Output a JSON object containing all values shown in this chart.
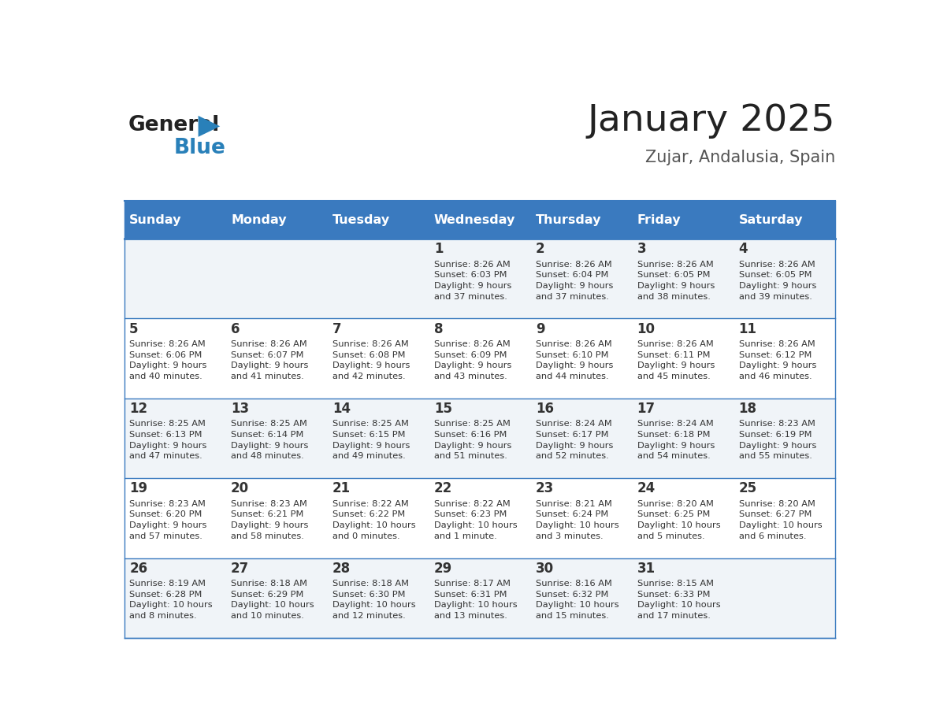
{
  "title": "January 2025",
  "subtitle": "Zujar, Andalusia, Spain",
  "header_color": "#3a7abf",
  "header_text_color": "#ffffff",
  "cell_bg_color": "#f0f4f8",
  "cell_bg_alt": "#ffffff",
  "border_color": "#3a7abf",
  "day_names": [
    "Sunday",
    "Monday",
    "Tuesday",
    "Wednesday",
    "Thursday",
    "Friday",
    "Saturday"
  ],
  "title_color": "#222222",
  "subtitle_color": "#555555",
  "day_num_color": "#333333",
  "cell_text_color": "#333333",
  "logo_general_color": "#222222",
  "logo_blue_color": "#2980b9",
  "days": [
    {
      "date": 1,
      "col": 3,
      "row": 0,
      "sunrise": "8:26 AM",
      "sunset": "6:03 PM",
      "daylight_h": "9 hours",
      "daylight_m": "37 minutes."
    },
    {
      "date": 2,
      "col": 4,
      "row": 0,
      "sunrise": "8:26 AM",
      "sunset": "6:04 PM",
      "daylight_h": "9 hours",
      "daylight_m": "37 minutes."
    },
    {
      "date": 3,
      "col": 5,
      "row": 0,
      "sunrise": "8:26 AM",
      "sunset": "6:05 PM",
      "daylight_h": "9 hours",
      "daylight_m": "38 minutes."
    },
    {
      "date": 4,
      "col": 6,
      "row": 0,
      "sunrise": "8:26 AM",
      "sunset": "6:05 PM",
      "daylight_h": "9 hours",
      "daylight_m": "39 minutes."
    },
    {
      "date": 5,
      "col": 0,
      "row": 1,
      "sunrise": "8:26 AM",
      "sunset": "6:06 PM",
      "daylight_h": "9 hours",
      "daylight_m": "40 minutes."
    },
    {
      "date": 6,
      "col": 1,
      "row": 1,
      "sunrise": "8:26 AM",
      "sunset": "6:07 PM",
      "daylight_h": "9 hours",
      "daylight_m": "41 minutes."
    },
    {
      "date": 7,
      "col": 2,
      "row": 1,
      "sunrise": "8:26 AM",
      "sunset": "6:08 PM",
      "daylight_h": "9 hours",
      "daylight_m": "42 minutes."
    },
    {
      "date": 8,
      "col": 3,
      "row": 1,
      "sunrise": "8:26 AM",
      "sunset": "6:09 PM",
      "daylight_h": "9 hours",
      "daylight_m": "43 minutes."
    },
    {
      "date": 9,
      "col": 4,
      "row": 1,
      "sunrise": "8:26 AM",
      "sunset": "6:10 PM",
      "daylight_h": "9 hours",
      "daylight_m": "44 minutes."
    },
    {
      "date": 10,
      "col": 5,
      "row": 1,
      "sunrise": "8:26 AM",
      "sunset": "6:11 PM",
      "daylight_h": "9 hours",
      "daylight_m": "45 minutes."
    },
    {
      "date": 11,
      "col": 6,
      "row": 1,
      "sunrise": "8:26 AM",
      "sunset": "6:12 PM",
      "daylight_h": "9 hours",
      "daylight_m": "46 minutes."
    },
    {
      "date": 12,
      "col": 0,
      "row": 2,
      "sunrise": "8:25 AM",
      "sunset": "6:13 PM",
      "daylight_h": "9 hours",
      "daylight_m": "47 minutes."
    },
    {
      "date": 13,
      "col": 1,
      "row": 2,
      "sunrise": "8:25 AM",
      "sunset": "6:14 PM",
      "daylight_h": "9 hours",
      "daylight_m": "48 minutes."
    },
    {
      "date": 14,
      "col": 2,
      "row": 2,
      "sunrise": "8:25 AM",
      "sunset": "6:15 PM",
      "daylight_h": "9 hours",
      "daylight_m": "49 minutes."
    },
    {
      "date": 15,
      "col": 3,
      "row": 2,
      "sunrise": "8:25 AM",
      "sunset": "6:16 PM",
      "daylight_h": "9 hours",
      "daylight_m": "51 minutes."
    },
    {
      "date": 16,
      "col": 4,
      "row": 2,
      "sunrise": "8:24 AM",
      "sunset": "6:17 PM",
      "daylight_h": "9 hours",
      "daylight_m": "52 minutes."
    },
    {
      "date": 17,
      "col": 5,
      "row": 2,
      "sunrise": "8:24 AM",
      "sunset": "6:18 PM",
      "daylight_h": "9 hours",
      "daylight_m": "54 minutes."
    },
    {
      "date": 18,
      "col": 6,
      "row": 2,
      "sunrise": "8:23 AM",
      "sunset": "6:19 PM",
      "daylight_h": "9 hours",
      "daylight_m": "55 minutes."
    },
    {
      "date": 19,
      "col": 0,
      "row": 3,
      "sunrise": "8:23 AM",
      "sunset": "6:20 PM",
      "daylight_h": "9 hours",
      "daylight_m": "57 minutes."
    },
    {
      "date": 20,
      "col": 1,
      "row": 3,
      "sunrise": "8:23 AM",
      "sunset": "6:21 PM",
      "daylight_h": "9 hours",
      "daylight_m": "58 minutes."
    },
    {
      "date": 21,
      "col": 2,
      "row": 3,
      "sunrise": "8:22 AM",
      "sunset": "6:22 PM",
      "daylight_h": "10 hours",
      "daylight_m": "0 minutes."
    },
    {
      "date": 22,
      "col": 3,
      "row": 3,
      "sunrise": "8:22 AM",
      "sunset": "6:23 PM",
      "daylight_h": "10 hours",
      "daylight_m": "1 minute."
    },
    {
      "date": 23,
      "col": 4,
      "row": 3,
      "sunrise": "8:21 AM",
      "sunset": "6:24 PM",
      "daylight_h": "10 hours",
      "daylight_m": "3 minutes."
    },
    {
      "date": 24,
      "col": 5,
      "row": 3,
      "sunrise": "8:20 AM",
      "sunset": "6:25 PM",
      "daylight_h": "10 hours",
      "daylight_m": "5 minutes."
    },
    {
      "date": 25,
      "col": 6,
      "row": 3,
      "sunrise": "8:20 AM",
      "sunset": "6:27 PM",
      "daylight_h": "10 hours",
      "daylight_m": "6 minutes."
    },
    {
      "date": 26,
      "col": 0,
      "row": 4,
      "sunrise": "8:19 AM",
      "sunset": "6:28 PM",
      "daylight_h": "10 hours",
      "daylight_m": "8 minutes."
    },
    {
      "date": 27,
      "col": 1,
      "row": 4,
      "sunrise": "8:18 AM",
      "sunset": "6:29 PM",
      "daylight_h": "10 hours",
      "daylight_m": "10 minutes."
    },
    {
      "date": 28,
      "col": 2,
      "row": 4,
      "sunrise": "8:18 AM",
      "sunset": "6:30 PM",
      "daylight_h": "10 hours",
      "daylight_m": "12 minutes."
    },
    {
      "date": 29,
      "col": 3,
      "row": 4,
      "sunrise": "8:17 AM",
      "sunset": "6:31 PM",
      "daylight_h": "10 hours",
      "daylight_m": "13 minutes."
    },
    {
      "date": 30,
      "col": 4,
      "row": 4,
      "sunrise": "8:16 AM",
      "sunset": "6:32 PM",
      "daylight_h": "10 hours",
      "daylight_m": "15 minutes."
    },
    {
      "date": 31,
      "col": 5,
      "row": 4,
      "sunrise": "8:15 AM",
      "sunset": "6:33 PM",
      "daylight_h": "10 hours",
      "daylight_m": "17 minutes."
    }
  ]
}
